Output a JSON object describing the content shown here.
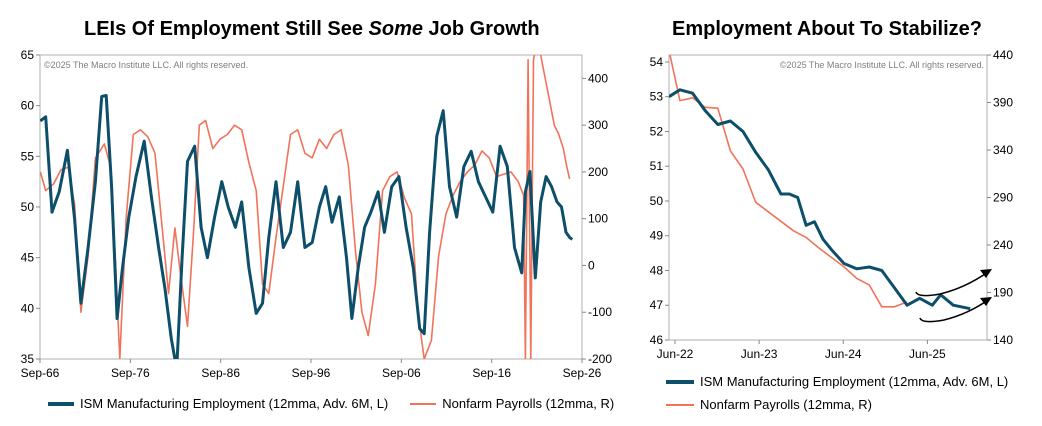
{
  "colors": {
    "ism": "#0d4f6a",
    "nfp": "#f0735a",
    "axis": "#888888"
  },
  "left": {
    "title_a": "LEIs Of Employment Still See ",
    "title_em": "Some",
    "title_b": " Job Growth",
    "copyright": "©2025 The Macro Institute LLC. All rights reserved.",
    "legend": {
      "ism": "ISM Manufacturing Employment (12mma, Adv. 6M, L)",
      "nfp": "Nonfarm Payrolls (12mma, R)"
    }
  },
  "right": {
    "title": "Employment About To Stabilize?",
    "copyright": "©2025 The Macro Institute LLC. All rights reserved.",
    "legend": {
      "ism": "ISM Manufacturing Employment (12mma, Adv. 6M, L)",
      "nfp": "Nonfarm Payrolls (12mma, R)"
    }
  },
  "chart_data": [
    {
      "type": "line",
      "title": "LEIs Of Employment Still See Some Job Growth",
      "x_ticks": [
        "Sep-66",
        "Sep-76",
        "Sep-86",
        "Sep-96",
        "Sep-06",
        "Sep-16",
        "Sep-26"
      ],
      "x_range": [
        1966.67,
        2026.67
      ],
      "y_left_ticks": [
        "65",
        "60",
        "55",
        "50",
        "45",
        "40",
        "35"
      ],
      "y_left_range": [
        35,
        65
      ],
      "y_right_ticks": [
        "400",
        "300",
        "200",
        "100",
        "0",
        "-100",
        "-200"
      ],
      "y_right_range": [
        -200,
        450
      ],
      "series": [
        {
          "name": "ISM Manufacturing Employment (12mma, Adv. 6M, L)",
          "axis": "left",
          "x": [
            1966.7,
            1967.3,
            1968.0,
            1968.8,
            1969.7,
            1970.5,
            1971.2,
            1972.0,
            1972.8,
            1973.5,
            1974.0,
            1974.6,
            1975.2,
            1975.8,
            1976.5,
            1977.3,
            1978.2,
            1979.0,
            1979.8,
            1980.5,
            1981.2,
            1981.8,
            1982.4,
            1983.0,
            1983.8,
            1984.5,
            1985.2,
            1986.0,
            1986.8,
            1987.5,
            1988.3,
            1989.0,
            1989.8,
            1990.6,
            1991.3,
            1992.0,
            1992.8,
            1993.6,
            1994.4,
            1995.2,
            1996.0,
            1996.8,
            1997.6,
            1998.3,
            1999.0,
            1999.8,
            2000.6,
            2001.2,
            2001.9,
            2002.6,
            2003.3,
            2004.1,
            2004.8,
            2005.6,
            2006.4,
            2007.2,
            2008.0,
            2008.7,
            2009.2,
            2009.8,
            2010.6,
            2011.3,
            2012.0,
            2012.8,
            2013.6,
            2014.4,
            2015.2,
            2016.0,
            2016.8,
            2017.6,
            2018.4,
            2019.2,
            2020.0,
            2020.4,
            2020.9,
            2021.5,
            2022.1,
            2022.7,
            2023.3,
            2023.9,
            2024.4,
            2024.9,
            2025.3,
            2025.6
          ],
          "y": [
            58.5,
            58.9,
            49.5,
            51.5,
            55.6,
            48.8,
            40.5,
            46.0,
            52.5,
            60.9,
            61.0,
            52.0,
            39.0,
            44.0,
            49.0,
            53.0,
            56.5,
            51.0,
            46.0,
            42.0,
            37.0,
            34.0,
            45.0,
            54.5,
            56.0,
            48.0,
            45.0,
            49.0,
            52.5,
            50.0,
            48.0,
            50.5,
            44.0,
            39.5,
            40.5,
            47.0,
            52.5,
            46.0,
            47.5,
            52.5,
            46.0,
            46.5,
            50.0,
            52.0,
            48.5,
            51.0,
            45.0,
            39.0,
            44.0,
            48.0,
            49.5,
            51.5,
            47.5,
            52.0,
            53.0,
            48.0,
            44.0,
            38.0,
            37.5,
            47.5,
            57.0,
            59.5,
            52.0,
            49.0,
            54.0,
            55.5,
            52.5,
            51.0,
            49.5,
            56.0,
            54.0,
            46.0,
            43.5,
            51.5,
            53.5,
            43.0,
            50.5,
            53.0,
            52.0,
            50.5,
            50.0,
            47.5,
            47.0,
            46.8
          ]
        },
        {
          "name": "Nonfarm Payrolls (12mma, R)",
          "axis": "right",
          "x": [
            1966.7,
            1967.3,
            1968.2,
            1969.0,
            1969.8,
            1970.5,
            1971.2,
            1972.0,
            1972.8,
            1973.8,
            1974.5,
            1975.0,
            1975.5,
            1976.2,
            1977.0,
            1977.8,
            1978.6,
            1979.4,
            1980.2,
            1980.9,
            1981.6,
            1982.3,
            1983.0,
            1983.7,
            1984.3,
            1985.0,
            1985.8,
            1986.6,
            1987.4,
            1988.2,
            1989.0,
            1989.8,
            1990.6,
            1991.3,
            1992.0,
            1992.8,
            1993.6,
            1994.4,
            1995.2,
            1996.0,
            1996.8,
            1997.6,
            1998.4,
            1999.2,
            2000.0,
            2000.8,
            2001.6,
            2002.3,
            2003.0,
            2003.8,
            2004.6,
            2005.4,
            2006.2,
            2007.0,
            2007.8,
            2008.5,
            2009.2,
            2010.0,
            2010.8,
            2011.6,
            2012.4,
            2013.2,
            2014.0,
            2014.8,
            2015.6,
            2016.4,
            2017.2,
            2018.0,
            2018.8,
            2019.6,
            2020.2,
            2020.4,
            2020.7,
            2021.0,
            2021.3,
            2021.7,
            2022.1,
            2022.6,
            2023.1,
            2023.6,
            2024.1,
            2024.6,
            2025.0,
            2025.3
          ],
          "y": [
            200,
            160,
            175,
            205,
            210,
            130,
            -100,
            20,
            230,
            260,
            210,
            20,
            -200,
            100,
            280,
            290,
            275,
            240,
            80,
            -60,
            80,
            -30,
            -130,
            80,
            300,
            310,
            250,
            270,
            280,
            300,
            290,
            220,
            160,
            -40,
            -60,
            60,
            170,
            280,
            290,
            240,
            230,
            270,
            250,
            280,
            290,
            215,
            30,
            -100,
            -150,
            -40,
            160,
            190,
            200,
            145,
            110,
            -100,
            -200,
            -160,
            20,
            110,
            150,
            180,
            200,
            215,
            245,
            230,
            190,
            195,
            200,
            180,
            150,
            -200,
            440,
            -200,
            440,
            480,
            450,
            400,
            350,
            300,
            280,
            250,
            210,
            185
          ]
        }
      ]
    },
    {
      "type": "line",
      "title": "Employment About To Stabilize?",
      "x_ticks": [
        "Jun-22",
        "Jun-23",
        "Jun-24",
        "Jun-25"
      ],
      "x_range": [
        2022.42,
        2026.2
      ],
      "y_left_ticks": [
        "54",
        "53",
        "52",
        "51",
        "50",
        "49",
        "48",
        "47",
        "46"
      ],
      "y_left_range": [
        46,
        54.2
      ],
      "y_right_ticks": [
        "440",
        "390",
        "340",
        "290",
        "240",
        "190",
        "140"
      ],
      "y_right_range": [
        140,
        440
      ],
      "series": [
        {
          "name": "ISM Manufacturing Employment (12mma, Adv. 6M, L)",
          "axis": "left",
          "x": [
            2022.42,
            2022.55,
            2022.7,
            2022.85,
            2023.0,
            2023.15,
            2023.3,
            2023.45,
            2023.6,
            2023.75,
            2023.85,
            2023.95,
            2024.05,
            2024.15,
            2024.25,
            2024.35,
            2024.5,
            2024.65,
            2024.8,
            2024.95,
            2025.1,
            2025.25,
            2025.4,
            2025.55,
            2025.65,
            2025.8,
            2026.0
          ],
          "y": [
            53.0,
            53.2,
            53.1,
            52.6,
            52.2,
            52.3,
            52.0,
            51.4,
            50.9,
            50.2,
            50.2,
            50.1,
            49.3,
            49.4,
            48.9,
            48.6,
            48.2,
            48.05,
            48.1,
            48.0,
            47.5,
            47.0,
            47.2,
            47.0,
            47.3,
            47.0,
            46.9
          ]
        },
        {
          "name": "Nonfarm Payrolls (12mma, R)",
          "axis": "right",
          "x": [
            2022.42,
            2022.55,
            2022.7,
            2022.85,
            2023.0,
            2023.15,
            2023.3,
            2023.45,
            2023.6,
            2023.75,
            2023.9,
            2024.05,
            2024.2,
            2024.35,
            2024.5,
            2024.65,
            2024.8,
            2024.95,
            2025.1,
            2025.25
          ],
          "y": [
            445,
            392,
            395,
            385,
            384,
            339,
            320,
            285,
            275,
            265,
            255,
            248,
            237,
            227,
            217,
            205,
            198,
            175,
            175,
            180
          ]
        }
      ]
    }
  ]
}
